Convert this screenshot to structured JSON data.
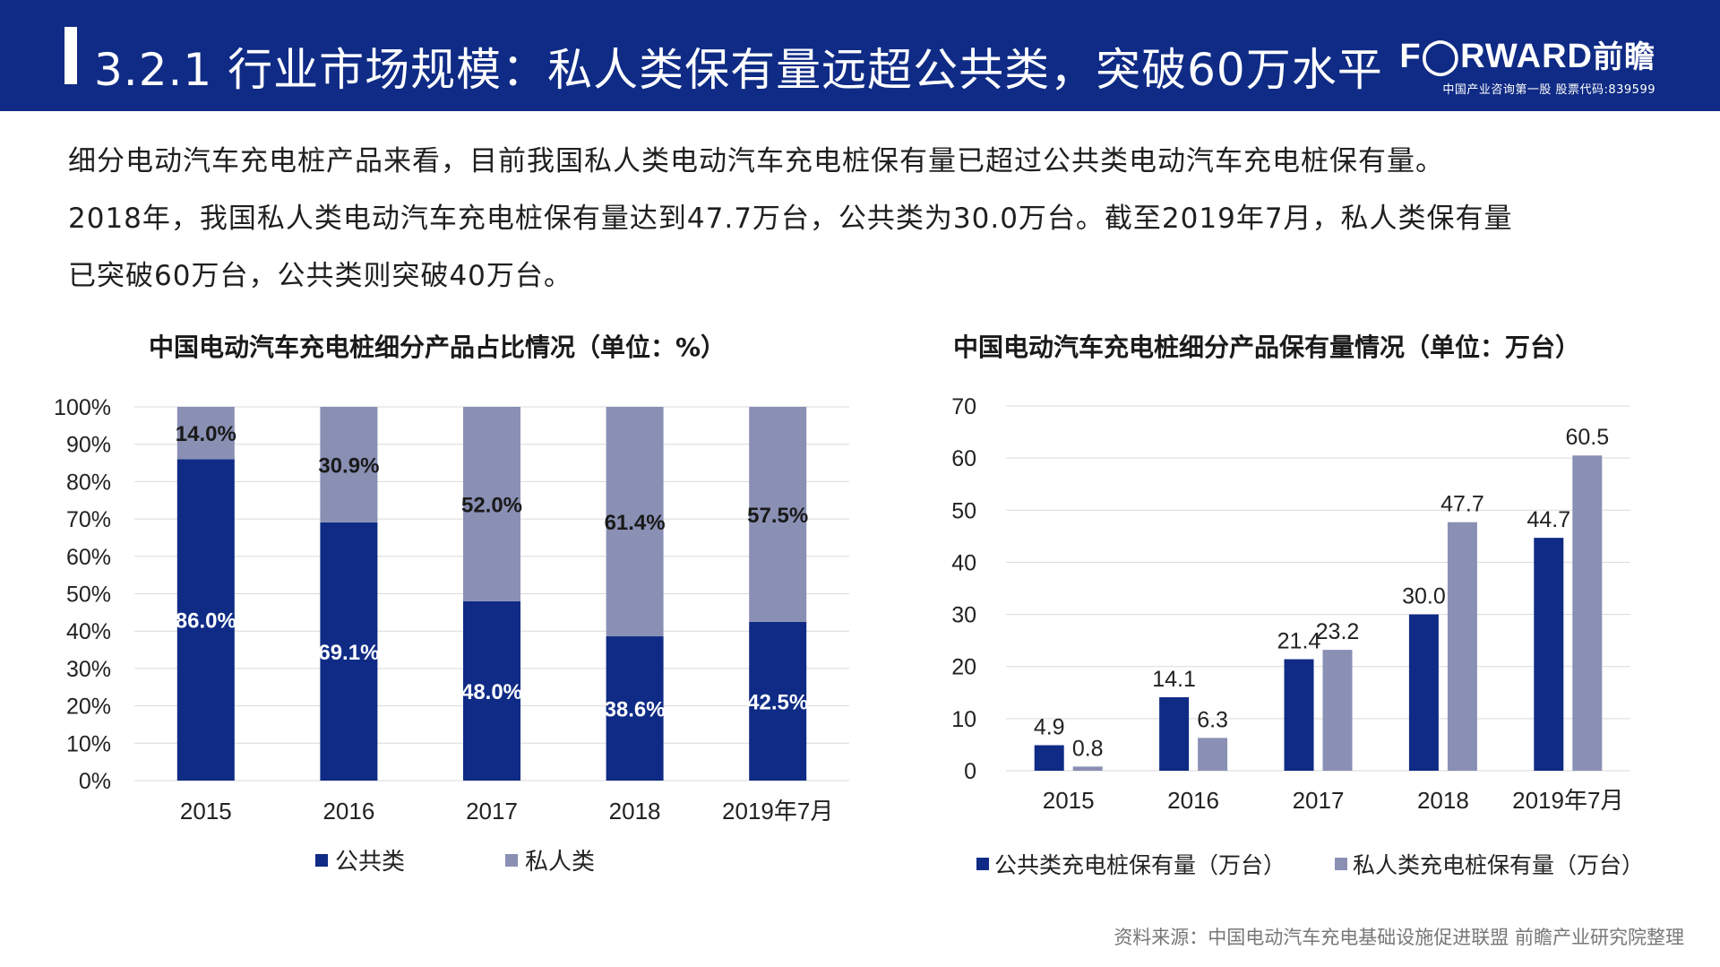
{
  "header": {
    "title": "3.2.1 行业市场规模：私人类保有量远超公共类，突破60万水平",
    "logo_text": "F◯RWARD",
    "logo_cn": "前瞻",
    "logo_sub": "中国产业咨询第一股  股票代码:839599"
  },
  "intro": {
    "lines": [
      "细分电动汽车充电桩产品来看，目前我国私人类电动汽车充电桩保有量已超过公共类电动汽车充电桩保有量。",
      "2018年，我国私人类电动汽车充电桩保有量达到47.7万台，公共类为30.0万台。截至2019年7月，私人类保有量",
      "已突破60万台，公共类则突破40万台。"
    ]
  },
  "colors": {
    "header_bg": "#0f2b85",
    "public": "#0f2b85",
    "private": "#8a90b4"
  },
  "chart_data": [
    {
      "type": "bar",
      "stacked": true,
      "title": "中国电动汽车充电桩细分产品占比情况（单位：%）",
      "categories": [
        "2015",
        "2016",
        "2017",
        "2018",
        "2019年7月"
      ],
      "series": [
        {
          "name": "公共类",
          "values": [
            86.0,
            69.1,
            48.0,
            38.6,
            42.5
          ],
          "labels": [
            "86.0%",
            "69.1%",
            "48.0%",
            "38.6%",
            "42.5%"
          ],
          "color": "#0f2b85"
        },
        {
          "name": "私人类",
          "values": [
            14.0,
            30.9,
            52.0,
            61.4,
            57.5
          ],
          "labels": [
            "14.0%",
            "30.9%",
            "52.0%",
            "61.4%",
            "57.5%"
          ],
          "color": "#8a90b4"
        }
      ],
      "ylim": [
        0,
        100
      ],
      "yticks": [
        "0%",
        "10%",
        "20%",
        "30%",
        "40%",
        "50%",
        "60%",
        "70%",
        "80%",
        "90%",
        "100%"
      ],
      "grid": true,
      "legend": "bottom"
    },
    {
      "type": "bar",
      "stacked": false,
      "title": "中国电动汽车充电桩细分产品保有量情况（单位：万台）",
      "categories": [
        "2015",
        "2016",
        "2017",
        "2018",
        "2019年7月"
      ],
      "series": [
        {
          "name": "公共类充电桩保有量（万台）",
          "values": [
            4.9,
            14.1,
            21.4,
            30.0,
            44.7
          ],
          "labels": [
            "4.9",
            "14.1",
            "21.4",
            "30.0",
            "44.7"
          ],
          "color": "#0f2b85"
        },
        {
          "name": "私人类充电桩保有量（万台）",
          "values": [
            0.8,
            6.3,
            23.2,
            47.7,
            60.5
          ],
          "labels": [
            "0.8",
            "6.3",
            "23.2",
            "47.7",
            "60.5"
          ],
          "color": "#8a90b4"
        }
      ],
      "ylim": [
        0,
        70
      ],
      "yticks": [
        "0",
        "10",
        "20",
        "30",
        "40",
        "50",
        "60",
        "70"
      ],
      "grid": true,
      "legend": "bottom"
    }
  ],
  "source": "资料来源：中国电动汽车充电基础设施促进联盟 前瞻产业研究院整理"
}
